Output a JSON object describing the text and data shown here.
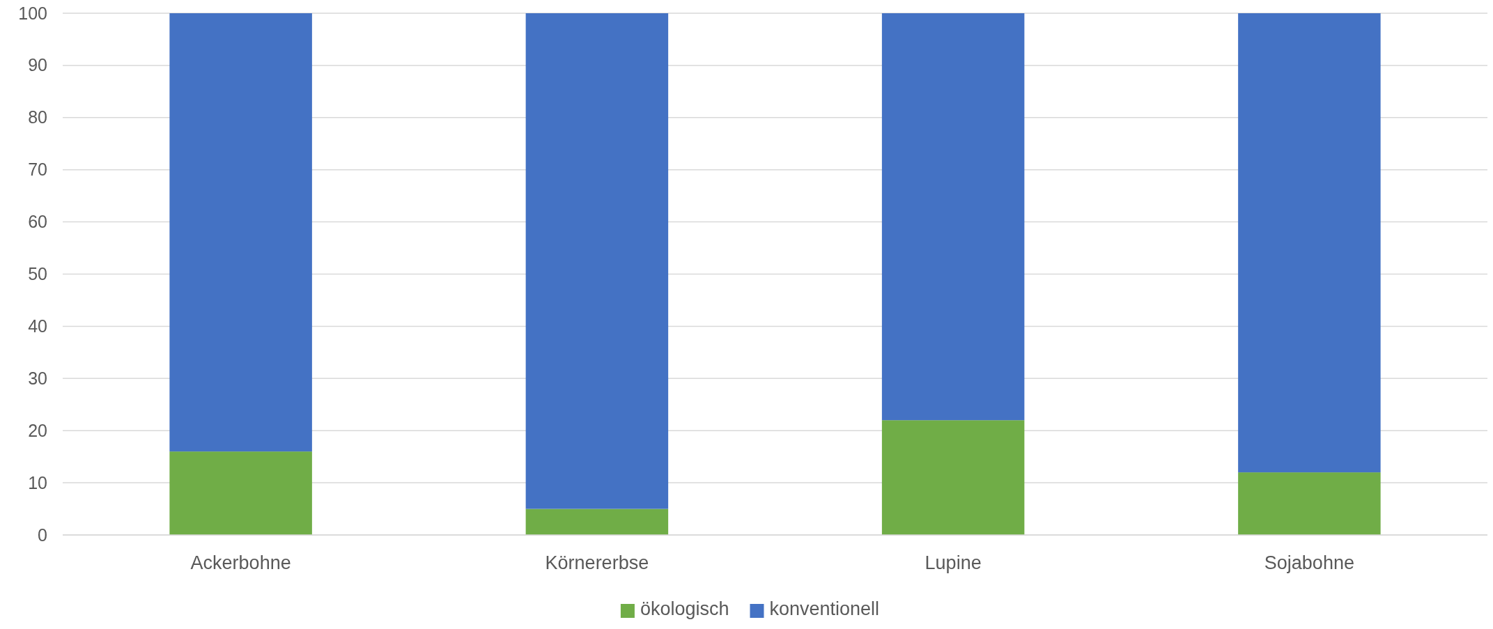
{
  "chart_data": {
    "type": "bar",
    "stacked": true,
    "categories": [
      "Ackerbohne",
      "Körnererbse",
      "Lupine",
      "Sojabohne"
    ],
    "series": [
      {
        "name": "ökologisch",
        "color": "#70ad47",
        "values": [
          16,
          5,
          22,
          12
        ]
      },
      {
        "name": "konventionell",
        "color": "#4472c4",
        "values": [
          84,
          95,
          78,
          88
        ]
      }
    ],
    "ylim": [
      0,
      100
    ],
    "yticks": [
      0,
      10,
      20,
      30,
      40,
      50,
      60,
      70,
      80,
      90,
      100
    ],
    "grid": "y",
    "legend": "bottom"
  }
}
